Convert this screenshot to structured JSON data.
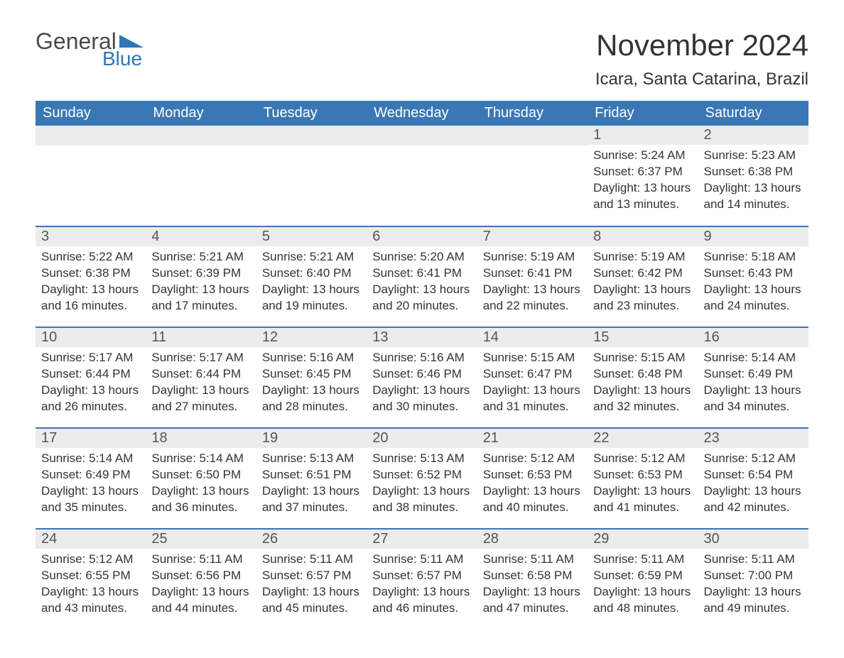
{
  "logo": {
    "text_general": "General",
    "text_blue": "Blue",
    "accent_color": "#2f77b7",
    "general_color": "#4a4a4a"
  },
  "title": {
    "month": "November 2024",
    "location": "Icara, Santa Catarina, Brazil",
    "month_fontsize": 42,
    "location_fontsize": 24,
    "text_color": "#333333"
  },
  "calendar": {
    "header_bg": "#3a78b5",
    "header_text_color": "#ffffff",
    "daynum_bg": "#ececec",
    "daynum_color": "#555555",
    "row_border_color": "#3a78b5",
    "body_text_color": "#333333",
    "body_fontsize": 17,
    "columns": [
      "Sunday",
      "Monday",
      "Tuesday",
      "Wednesday",
      "Thursday",
      "Friday",
      "Saturday"
    ],
    "weeks": [
      [
        null,
        null,
        null,
        null,
        null,
        {
          "n": "1",
          "sunrise": "5:24 AM",
          "sunset": "6:37 PM",
          "daylight": "Daylight: 13 hours and 13 minutes."
        },
        {
          "n": "2",
          "sunrise": "5:23 AM",
          "sunset": "6:38 PM",
          "daylight": "Daylight: 13 hours and 14 minutes."
        }
      ],
      [
        {
          "n": "3",
          "sunrise": "5:22 AM",
          "sunset": "6:38 PM",
          "daylight": "Daylight: 13 hours and 16 minutes."
        },
        {
          "n": "4",
          "sunrise": "5:21 AM",
          "sunset": "6:39 PM",
          "daylight": "Daylight: 13 hours and 17 minutes."
        },
        {
          "n": "5",
          "sunrise": "5:21 AM",
          "sunset": "6:40 PM",
          "daylight": "Daylight: 13 hours and 19 minutes."
        },
        {
          "n": "6",
          "sunrise": "5:20 AM",
          "sunset": "6:41 PM",
          "daylight": "Daylight: 13 hours and 20 minutes."
        },
        {
          "n": "7",
          "sunrise": "5:19 AM",
          "sunset": "6:41 PM",
          "daylight": "Daylight: 13 hours and 22 minutes."
        },
        {
          "n": "8",
          "sunrise": "5:19 AM",
          "sunset": "6:42 PM",
          "daylight": "Daylight: 13 hours and 23 minutes."
        },
        {
          "n": "9",
          "sunrise": "5:18 AM",
          "sunset": "6:43 PM",
          "daylight": "Daylight: 13 hours and 24 minutes."
        }
      ],
      [
        {
          "n": "10",
          "sunrise": "5:17 AM",
          "sunset": "6:44 PM",
          "daylight": "Daylight: 13 hours and 26 minutes."
        },
        {
          "n": "11",
          "sunrise": "5:17 AM",
          "sunset": "6:44 PM",
          "daylight": "Daylight: 13 hours and 27 minutes."
        },
        {
          "n": "12",
          "sunrise": "5:16 AM",
          "sunset": "6:45 PM",
          "daylight": "Daylight: 13 hours and 28 minutes."
        },
        {
          "n": "13",
          "sunrise": "5:16 AM",
          "sunset": "6:46 PM",
          "daylight": "Daylight: 13 hours and 30 minutes."
        },
        {
          "n": "14",
          "sunrise": "5:15 AM",
          "sunset": "6:47 PM",
          "daylight": "Daylight: 13 hours and 31 minutes."
        },
        {
          "n": "15",
          "sunrise": "5:15 AM",
          "sunset": "6:48 PM",
          "daylight": "Daylight: 13 hours and 32 minutes."
        },
        {
          "n": "16",
          "sunrise": "5:14 AM",
          "sunset": "6:49 PM",
          "daylight": "Daylight: 13 hours and 34 minutes."
        }
      ],
      [
        {
          "n": "17",
          "sunrise": "5:14 AM",
          "sunset": "6:49 PM",
          "daylight": "Daylight: 13 hours and 35 minutes."
        },
        {
          "n": "18",
          "sunrise": "5:14 AM",
          "sunset": "6:50 PM",
          "daylight": "Daylight: 13 hours and 36 minutes."
        },
        {
          "n": "19",
          "sunrise": "5:13 AM",
          "sunset": "6:51 PM",
          "daylight": "Daylight: 13 hours and 37 minutes."
        },
        {
          "n": "20",
          "sunrise": "5:13 AM",
          "sunset": "6:52 PM",
          "daylight": "Daylight: 13 hours and 38 minutes."
        },
        {
          "n": "21",
          "sunrise": "5:12 AM",
          "sunset": "6:53 PM",
          "daylight": "Daylight: 13 hours and 40 minutes."
        },
        {
          "n": "22",
          "sunrise": "5:12 AM",
          "sunset": "6:53 PM",
          "daylight": "Daylight: 13 hours and 41 minutes."
        },
        {
          "n": "23",
          "sunrise": "5:12 AM",
          "sunset": "6:54 PM",
          "daylight": "Daylight: 13 hours and 42 minutes."
        }
      ],
      [
        {
          "n": "24",
          "sunrise": "5:12 AM",
          "sunset": "6:55 PM",
          "daylight": "Daylight: 13 hours and 43 minutes."
        },
        {
          "n": "25",
          "sunrise": "5:11 AM",
          "sunset": "6:56 PM",
          "daylight": "Daylight: 13 hours and 44 minutes."
        },
        {
          "n": "26",
          "sunrise": "5:11 AM",
          "sunset": "6:57 PM",
          "daylight": "Daylight: 13 hours and 45 minutes."
        },
        {
          "n": "27",
          "sunrise": "5:11 AM",
          "sunset": "6:57 PM",
          "daylight": "Daylight: 13 hours and 46 minutes."
        },
        {
          "n": "28",
          "sunrise": "5:11 AM",
          "sunset": "6:58 PM",
          "daylight": "Daylight: 13 hours and 47 minutes."
        },
        {
          "n": "29",
          "sunrise": "5:11 AM",
          "sunset": "6:59 PM",
          "daylight": "Daylight: 13 hours and 48 minutes."
        },
        {
          "n": "30",
          "sunrise": "5:11 AM",
          "sunset": "7:00 PM",
          "daylight": "Daylight: 13 hours and 49 minutes."
        }
      ]
    ],
    "labels": {
      "sunrise_prefix": "Sunrise: ",
      "sunset_prefix": "Sunset: "
    }
  }
}
